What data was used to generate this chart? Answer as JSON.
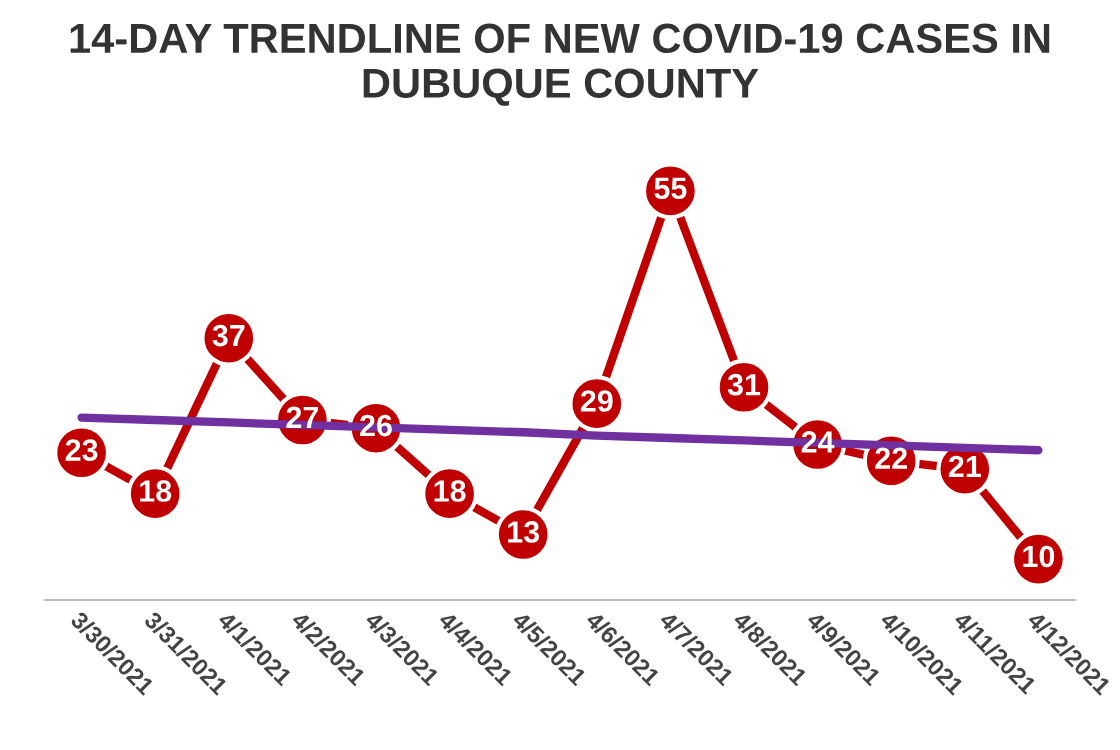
{
  "chart_data": {
    "type": "line",
    "title": "14-DAY TRENDLINE OF NEW COVID-19 CASES IN DUBUQUE COUNTY",
    "categories": [
      "3/30/2021",
      "3/31/2021",
      "4/1/2021",
      "4/2/2021",
      "4/3/2021",
      "4/4/2021",
      "4/5/2021",
      "4/6/2021",
      "4/7/2021",
      "4/8/2021",
      "4/9/2021",
      "4/10/2021",
      "4/11/2021",
      "4/12/2021"
    ],
    "series": [
      {
        "color": "#7030a0",
        "marker": "none",
        "values": [
          27.3,
          27.0,
          26.7,
          26.4,
          26.1,
          25.8,
          25.5,
          25.1,
          24.8,
          24.5,
          24.2,
          23.9,
          23.6,
          23.3
        ]
      },
      {
        "color": "#c00000",
        "marker": "circle",
        "values": [
          23,
          18,
          37,
          27,
          26,
          18,
          13,
          29,
          55,
          31,
          24,
          22,
          21,
          10
        ],
        "value_labels": [
          "23",
          "18",
          "37",
          "27",
          "26",
          "18",
          "13",
          "29",
          "55",
          "31",
          "24",
          "22",
          "21",
          "10"
        ]
      }
    ],
    "grid": false,
    "legend": false,
    "tick_labels": "x",
    "line_style": "solid"
  }
}
